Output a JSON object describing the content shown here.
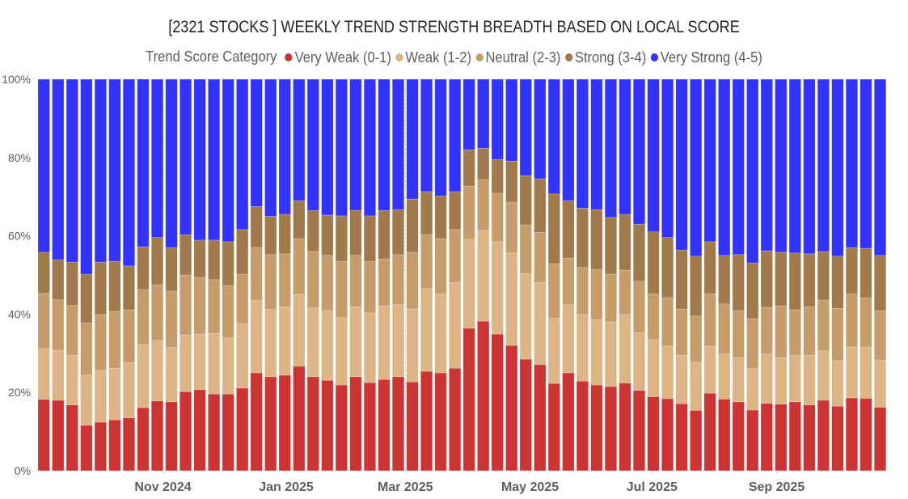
{
  "chart_data": {
    "type": "bar",
    "stacked": "100%",
    "title": "[2321 STOCKS ] WEEKLY TREND STRENGTH BREADTH BASED ON LOCAL SCORE",
    "legend_title": "Trend Score Category",
    "legend_position": "top",
    "xlabel": "",
    "ylabel": "",
    "ylim": [
      0,
      100
    ],
    "y_ticks": [
      "0%",
      "20%",
      "40%",
      "60%",
      "80%",
      "100%"
    ],
    "x_ticks": [
      {
        "label": "Nov 2024",
        "at_index": 8.4
      },
      {
        "label": "Jan 2025",
        "at_index": 17.1
      },
      {
        "label": "Mar 2025",
        "at_index": 25.5
      },
      {
        "label": "May 2025",
        "at_index": 34.3
      },
      {
        "label": "Jul 2025",
        "at_index": 42.9
      },
      {
        "label": "Sep 2025",
        "at_index": 51.7
      }
    ],
    "bar_count": 60,
    "series": [
      {
        "name": "Very Weak (0-1)",
        "color": "#CC3333",
        "values": [
          18.2,
          18.0,
          16.8,
          11.6,
          12.4,
          13.0,
          13.5,
          16.1,
          17.8,
          17.6,
          20.2,
          20.7,
          19.6,
          19.6,
          21.1,
          25.0,
          24.0,
          24.4,
          26.7,
          24.0,
          23.1,
          21.9,
          24.0,
          22.5,
          23.3,
          24.0,
          22.7,
          25.4,
          25.0,
          26.2,
          36.4,
          38.2,
          34.9,
          32.0,
          28.5,
          27.1,
          22.3,
          25.0,
          22.9,
          21.9,
          21.5,
          22.4,
          20.5,
          18.9,
          18.4,
          17.1,
          15.4,
          19.8,
          18.3,
          17.6,
          15.5,
          17.2,
          17.0,
          17.6,
          16.8,
          18.0,
          16.5,
          18.6,
          18.5,
          16.2
        ]
      },
      {
        "name": "Weak (1-2)",
        "color": "#DDB585",
        "values": [
          13.0,
          12.8,
          12.7,
          12.8,
          13.2,
          13.2,
          14.1,
          16.1,
          15.5,
          13.9,
          14.5,
          14.2,
          15.5,
          14.3,
          16.5,
          18.6,
          17.2,
          17.5,
          18.3,
          17.6,
          17.8,
          17.2,
          17.9,
          17.8,
          18.8,
          18.4,
          18.6,
          21.1,
          20.2,
          21.9,
          22.7,
          23.2,
          23.6,
          23.6,
          21.9,
          21.0,
          16.7,
          17.4,
          17.0,
          16.7,
          16.5,
          17.5,
          14.8,
          14.6,
          13.4,
          12.4,
          12.3,
          12.0,
          11.5,
          11.3,
          10.6,
          12.6,
          11.9,
          11.8,
          12.7,
          12.6,
          11.6,
          13.0,
          13.1,
          12.1
        ]
      },
      {
        "name": "Neutral (2-3)",
        "color": "#C69C6B",
        "values": [
          14.1,
          12.9,
          12.7,
          13.4,
          14.3,
          14.5,
          13.5,
          14.1,
          14.2,
          14.4,
          15.3,
          14.5,
          13.7,
          13.4,
          12.6,
          13.4,
          14.0,
          13.5,
          14.3,
          14.4,
          14.1,
          14.4,
          13.1,
          13.2,
          12.0,
          12.8,
          14.5,
          13.8,
          14.1,
          13.5,
          13.6,
          13.0,
          12.4,
          13.0,
          12.4,
          12.8,
          13.9,
          11.9,
          12.0,
          12.8,
          12.2,
          11.3,
          13.1,
          11.7,
          12.4,
          11.8,
          11.8,
          13.4,
          12.8,
          12.0,
          12.7,
          11.9,
          13.2,
          11.7,
          12.4,
          13.0,
          13.4,
          13.6,
          12.6,
          12.6
        ]
      },
      {
        "name": "Strong (3-4)",
        "color": "#A07A4A",
        "values": [
          10.5,
          10.2,
          11.1,
          12.4,
          13.4,
          12.8,
          11.2,
          10.9,
          12.1,
          11.1,
          10.3,
          9.5,
          10.1,
          11.2,
          11.4,
          10.5,
          9.8,
          10.1,
          9.7,
          10.5,
          10.3,
          11.6,
          11.5,
          11.6,
          12.4,
          11.5,
          13.6,
          11.0,
          10.9,
          9.7,
          9.3,
          8.0,
          8.6,
          10.5,
          12.6,
          13.7,
          17.8,
          14.7,
          15.2,
          15.3,
          14.5,
          14.3,
          14.6,
          15.8,
          15.4,
          15.1,
          15.3,
          13.3,
          12.4,
          14.3,
          14.3,
          14.5,
          13.7,
          14.5,
          13.5,
          12.4,
          13.3,
          11.8,
          12.6,
          14.1
        ]
      },
      {
        "name": "Very Strong (4-5)",
        "color": "#3333FF",
        "values": [
          44.2,
          46.1,
          46.7,
          49.8,
          46.7,
          46.5,
          47.7,
          42.8,
          40.4,
          43.0,
          39.7,
          41.1,
          41.1,
          41.5,
          38.4,
          32.5,
          35.0,
          34.5,
          31.0,
          33.5,
          34.7,
          34.9,
          33.5,
          34.9,
          33.5,
          33.3,
          30.6,
          28.7,
          29.8,
          28.7,
          18.0,
          17.6,
          20.5,
          20.9,
          24.6,
          25.4,
          29.3,
          31.0,
          32.9,
          33.3,
          35.3,
          34.5,
          37.0,
          39.0,
          40.4,
          43.6,
          45.2,
          41.5,
          45.0,
          44.8,
          46.9,
          43.8,
          44.2,
          44.4,
          44.6,
          44.0,
          45.2,
          43.0,
          43.2,
          45.0
        ]
      }
    ]
  }
}
